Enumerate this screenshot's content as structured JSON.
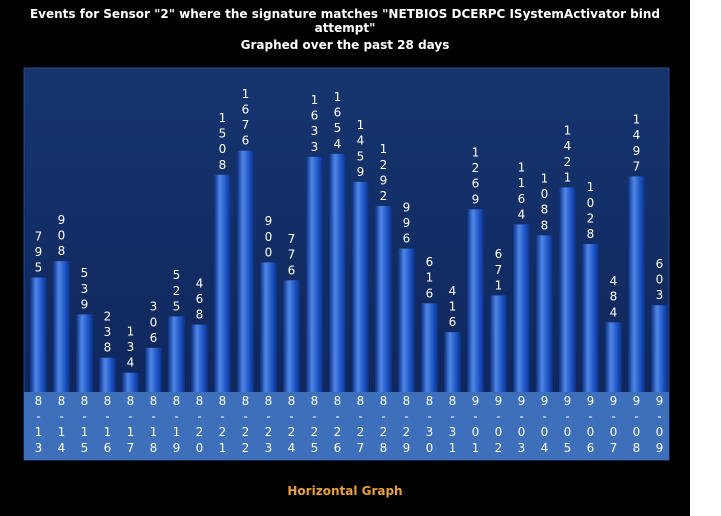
{
  "chart_data": {
    "type": "bar",
    "title": "Events for Sensor \"2\" where the signature matches \"NETBIOS DCERPC ISystemActivator bind attempt\"",
    "subtitle": "Graphed over the past 28 days",
    "categories": [
      "8-13",
      "8-14",
      "8-15",
      "8-16",
      "8-17",
      "8-18",
      "8-19",
      "8-20",
      "8-21",
      "8-22",
      "8-23",
      "8-24",
      "8-25",
      "8-26",
      "8-27",
      "8-28",
      "8-29",
      "8-30",
      "8-31",
      "9-01",
      "9-02",
      "9-03",
      "9-04",
      "9-05",
      "9-06",
      "9-07",
      "9-08",
      "9-09"
    ],
    "values": [
      795,
      908,
      539,
      238,
      134,
      306,
      525,
      468,
      1508,
      1676,
      900,
      776,
      1633,
      1654,
      1459,
      1292,
      996,
      616,
      416,
      1269,
      671,
      1164,
      1088,
      1421,
      1028,
      484,
      1497,
      603
    ],
    "ylim": [
      0,
      2300
    ],
    "grid": false,
    "legend": "none"
  },
  "footer": {
    "link_label": "Horizontal Graph"
  },
  "colors": {
    "background": "#000000",
    "plot_background": "#102a60",
    "plot_border": "#2a4a8a",
    "bar_light": "#4f86e6",
    "bar_mid": "#1e56c8",
    "bar_dark": "#0c2e80",
    "label_band": "#3d6fba",
    "text": "#ffffff",
    "link": "#e8a23a"
  }
}
